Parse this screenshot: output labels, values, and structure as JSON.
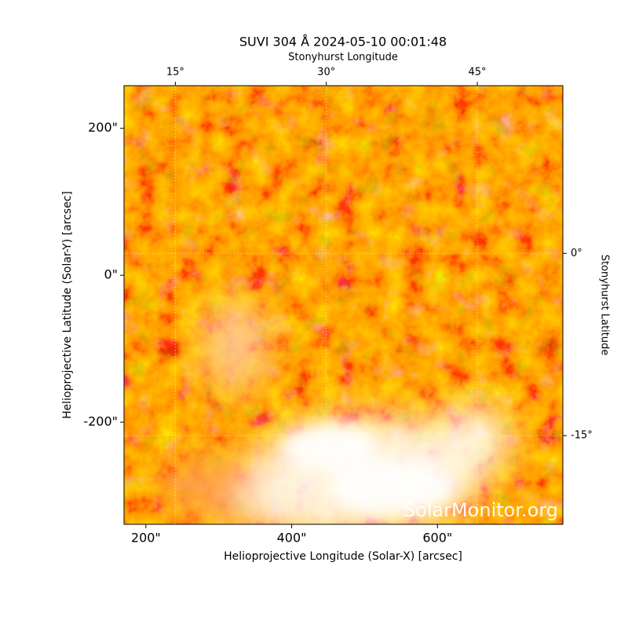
{
  "chart_data": {
    "type": "image",
    "title": "SUVI 304 Å 2024-05-10 00:01:48",
    "xlabel": "Helioprojective Longitude (Solar-X) [arcsec]",
    "ylabel": "Helioprojective Latitude (Solar-Y) [arcsec]",
    "x2label": "Stonyhurst Longitude",
    "y2label": "Stonyhurst Latitude",
    "watermark": "SolarMonitor.org",
    "xlim": [
      170,
      772
    ],
    "ylim": [
      -339,
      258
    ],
    "xticks": [
      {
        "value": 200,
        "label": "200\""
      },
      {
        "value": 400,
        "label": "400\""
      },
      {
        "value": 600,
        "label": "600\""
      }
    ],
    "yticks": [
      {
        "value": -200,
        "label": "-200\""
      },
      {
        "value": 0,
        "label": "0\""
      },
      {
        "value": 200,
        "label": "200\""
      }
    ],
    "x2lim": [
      9.9,
      53.5
    ],
    "x2ticks": [
      {
        "value": 15,
        "label": "15°"
      },
      {
        "value": 30,
        "label": "30°"
      },
      {
        "value": 45,
        "label": "45°"
      }
    ],
    "y2lim": [
      -22.3,
      13.8
    ],
    "y2ticks": [
      {
        "value": 0,
        "label": "0°"
      },
      {
        "value": -15,
        "label": "-15°"
      }
    ],
    "grid": true
  }
}
